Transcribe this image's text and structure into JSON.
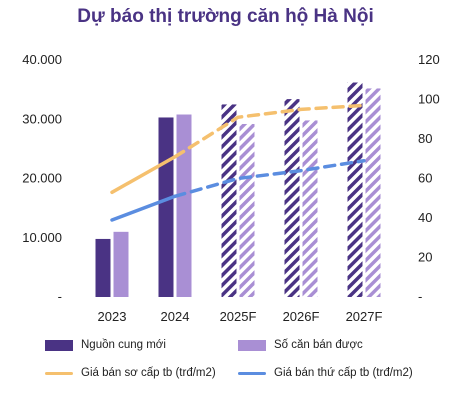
{
  "chart_data": {
    "type": "bar",
    "title": "Dự báo thị trường căn hộ Hà Nội",
    "categories": [
      "2023",
      "2024",
      "2025F",
      "2026F",
      "2027F"
    ],
    "forecast_from_index": 2,
    "y_left": {
      "range": [
        0,
        40000
      ],
      "ticks": [
        "-",
        "10.000",
        "20.000",
        "30.000",
        "40.000"
      ]
    },
    "y_right": {
      "range": [
        0,
        120
      ],
      "ticks": [
        "-",
        "20",
        "40",
        "60",
        "80",
        "100",
        "120"
      ]
    },
    "series": [
      {
        "name": "Nguồn cung mới",
        "type": "bar",
        "axis": "left",
        "color": "#4a3384",
        "values": [
          9800,
          30300,
          32500,
          33400,
          36200
        ]
      },
      {
        "name": "Số căn bán được",
        "type": "bar",
        "axis": "left",
        "color": "#a98fd4",
        "values": [
          11000,
          30800,
          29200,
          29800,
          35200
        ]
      },
      {
        "name": "Giá bán sơ cấp tb (trđ/m2)",
        "type": "line",
        "axis": "right",
        "color": "#f5c06e",
        "values": [
          53,
          71,
          91,
          95,
          97
        ]
      },
      {
        "name": "Giá bán thứ cấp tb (trđ/m2)",
        "type": "line",
        "axis": "right",
        "color": "#5b8de0",
        "values": [
          39,
          51,
          60,
          64,
          69
        ]
      }
    ],
    "grid": false,
    "legend_position": "bottom"
  }
}
